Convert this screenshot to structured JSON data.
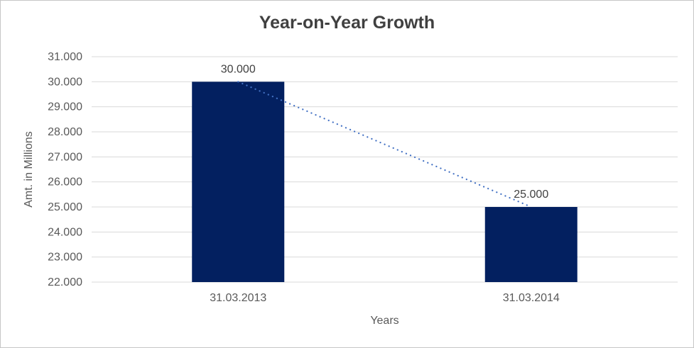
{
  "frame": {
    "background": "#ffffff",
    "border_color": "#c6c6c6"
  },
  "chart_data": {
    "type": "bar",
    "title": "Year-on-Year Growth",
    "xlabel": "Years",
    "ylabel": "Amt. in Millions",
    "categories": [
      "31.03.2013",
      "31.03.2014"
    ],
    "values": [
      30000,
      25000
    ],
    "data_labels": [
      "30.000",
      "25.000"
    ],
    "ylim": [
      22000,
      31000
    ],
    "ytick_values": [
      31000,
      30000,
      29000,
      28000,
      27000,
      26000,
      25000,
      24000,
      23000,
      22000
    ],
    "ytick_labels": [
      "31.000",
      "30.000",
      "29.000",
      "28.000",
      "27.000",
      "26.000",
      "25.000",
      "24.000",
      "23.000",
      "22.000"
    ],
    "grid": true,
    "legend": "none",
    "trendline": {
      "type": "linear",
      "style": "dotted",
      "color": "#4472c4"
    },
    "colors": {
      "bar": "#032060",
      "gridline": "#d9d9d9",
      "axis_text": "#595959",
      "title_text": "#404040",
      "data_label_text": "#404040"
    }
  }
}
